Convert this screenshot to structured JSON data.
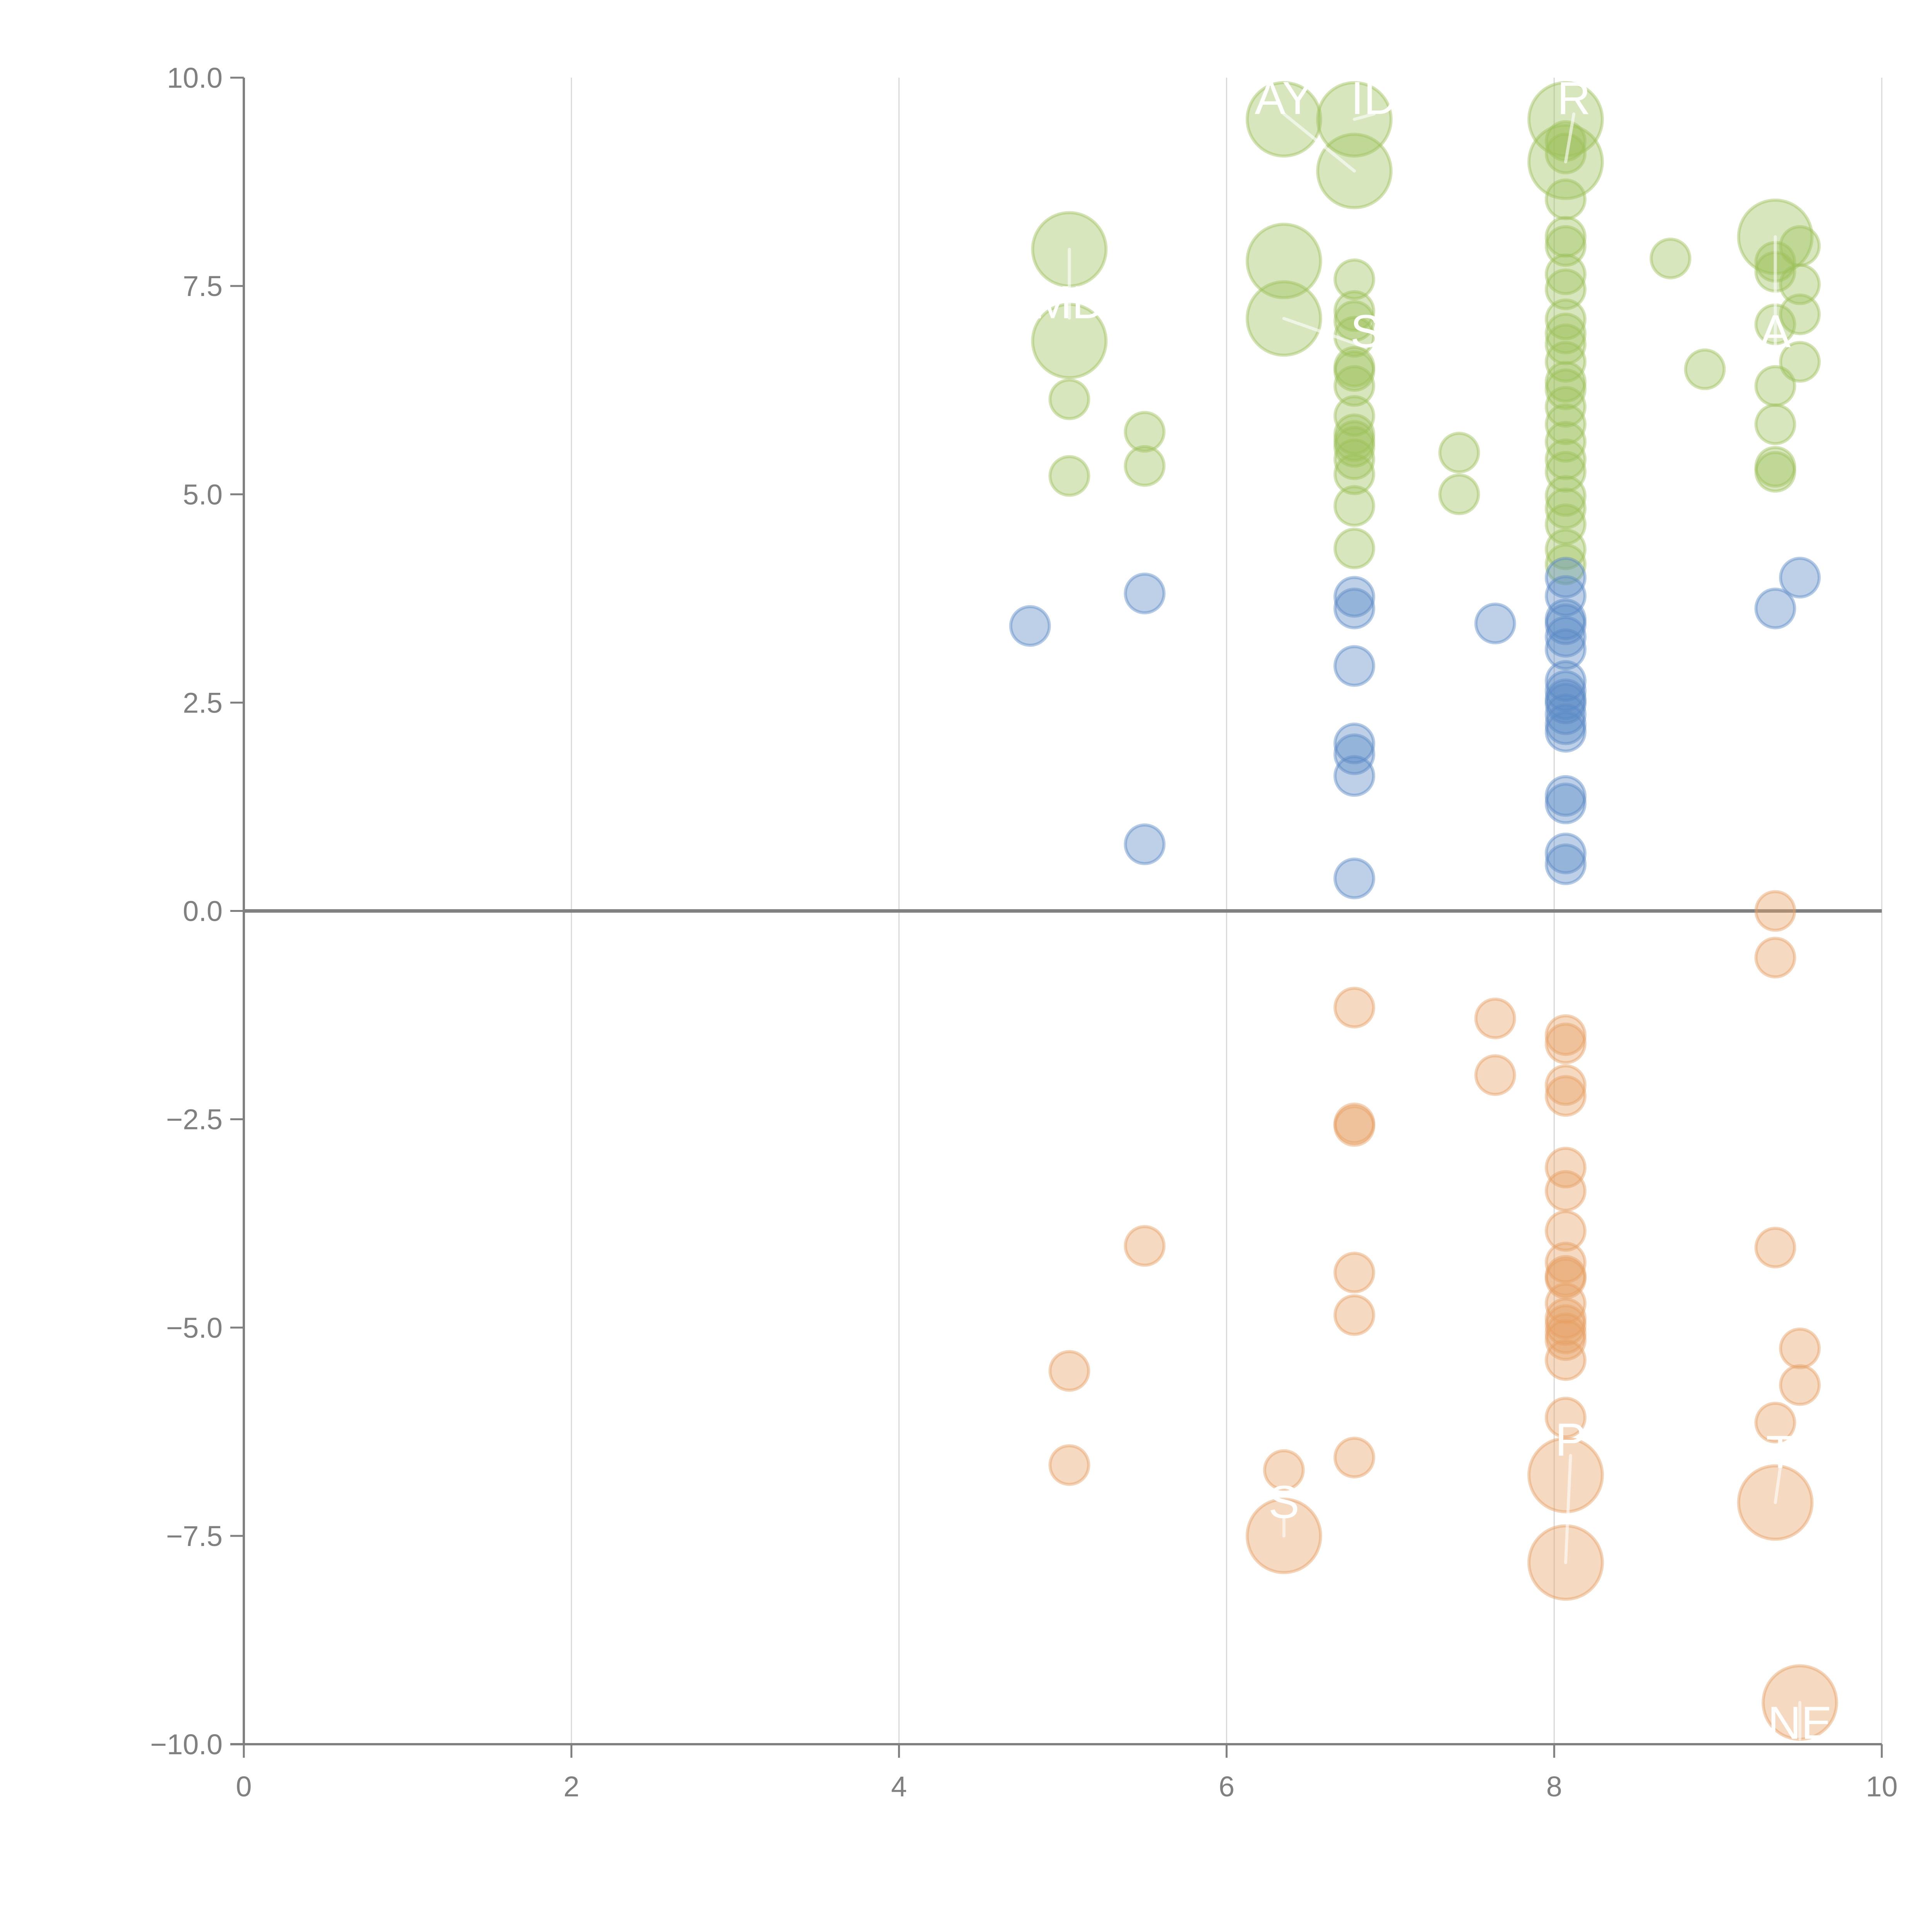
{
  "chart_data": {
    "type": "scatter",
    "subtype": "bubble",
    "title": "",
    "xlabel": "",
    "ylabel": "",
    "xlim": [
      0,
      10
    ],
    "ylim": [
      -10,
      10
    ],
    "x_ticks": [
      "0",
      "2",
      "4",
      "6",
      "8",
      "10"
    ],
    "y_ticks": [
      "10.0",
      "7.5",
      "5.0",
      "2.5",
      "0.0",
      "−2.5",
      "−5.0",
      "−7.5",
      "−10.0"
    ],
    "x_tick_values": [
      0,
      2,
      4,
      6,
      8,
      10
    ],
    "y_tick_values": [
      10,
      7.5,
      5,
      2.5,
      0,
      -2.5,
      -5,
      -7.5,
      -10
    ],
    "grid": "vertical",
    "zero_line": true,
    "legend": "none",
    "series": [
      {
        "name": "green",
        "color": "#9dc05b",
        "points": [
          {
            "x": 5.04,
            "y": 7.94,
            "size": "large"
          },
          {
            "x": 5.04,
            "y": 6.84,
            "size": "large"
          },
          {
            "x": 5.04,
            "y": 6.14,
            "size": "small"
          },
          {
            "x": 5.04,
            "y": 5.22,
            "size": "small"
          },
          {
            "x": 5.5,
            "y": 5.75,
            "size": "small"
          },
          {
            "x": 5.5,
            "y": 5.34,
            "size": "small"
          },
          {
            "x": 6.35,
            "y": 9.5,
            "size": "large"
          },
          {
            "x": 6.35,
            "y": 7.8,
            "size": "large"
          },
          {
            "x": 6.35,
            "y": 7.11,
            "size": "large"
          },
          {
            "x": 6.78,
            "y": 9.5,
            "size": "large"
          },
          {
            "x": 6.78,
            "y": 8.88,
            "size": "large"
          },
          {
            "x": 6.78,
            "y": 7.58,
            "size": "small"
          },
          {
            "x": 6.78,
            "y": 7.2,
            "size": "small"
          },
          {
            "x": 6.78,
            "y": 7.08,
            "size": "small"
          },
          {
            "x": 6.78,
            "y": 6.89,
            "size": "small"
          },
          {
            "x": 6.78,
            "y": 6.53,
            "size": "small"
          },
          {
            "x": 6.78,
            "y": 6.48,
            "size": "small"
          },
          {
            "x": 6.78,
            "y": 6.3,
            "size": "small"
          },
          {
            "x": 6.78,
            "y": 5.94,
            "size": "small"
          },
          {
            "x": 6.78,
            "y": 5.72,
            "size": "small"
          },
          {
            "x": 6.78,
            "y": 5.64,
            "size": "small"
          },
          {
            "x": 6.78,
            "y": 5.57,
            "size": "small"
          },
          {
            "x": 6.78,
            "y": 5.42,
            "size": "small"
          },
          {
            "x": 6.78,
            "y": 5.24,
            "size": "small"
          },
          {
            "x": 6.78,
            "y": 4.86,
            "size": "small"
          },
          {
            "x": 6.78,
            "y": 4.35,
            "size": "small"
          },
          {
            "x": 7.42,
            "y": 5.5,
            "size": "small"
          },
          {
            "x": 7.42,
            "y": 5.0,
            "size": "small"
          },
          {
            "x": 8.07,
            "y": 9.5,
            "size": "large"
          },
          {
            "x": 8.07,
            "y": 8.99,
            "size": "large"
          },
          {
            "x": 8.07,
            "y": 9.24,
            "size": "small"
          },
          {
            "x": 8.07,
            "y": 9.09,
            "size": "small"
          },
          {
            "x": 8.07,
            "y": 8.54,
            "size": "small"
          },
          {
            "x": 8.07,
            "y": 8.09,
            "size": "small"
          },
          {
            "x": 8.07,
            "y": 7.98,
            "size": "small"
          },
          {
            "x": 8.07,
            "y": 7.64,
            "size": "small"
          },
          {
            "x": 8.07,
            "y": 7.46,
            "size": "small"
          },
          {
            "x": 8.07,
            "y": 7.1,
            "size": "small"
          },
          {
            "x": 8.07,
            "y": 6.93,
            "size": "small"
          },
          {
            "x": 8.07,
            "y": 6.8,
            "size": "small"
          },
          {
            "x": 8.07,
            "y": 6.59,
            "size": "small"
          },
          {
            "x": 8.07,
            "y": 6.35,
            "size": "small"
          },
          {
            "x": 8.07,
            "y": 6.26,
            "size": "small"
          },
          {
            "x": 8.07,
            "y": 6.05,
            "size": "small"
          },
          {
            "x": 8.07,
            "y": 5.84,
            "size": "small"
          },
          {
            "x": 8.07,
            "y": 5.63,
            "size": "small"
          },
          {
            "x": 8.07,
            "y": 5.42,
            "size": "small"
          },
          {
            "x": 8.07,
            "y": 5.27,
            "size": "small"
          },
          {
            "x": 8.07,
            "y": 4.98,
            "size": "small"
          },
          {
            "x": 8.07,
            "y": 4.83,
            "size": "small"
          },
          {
            "x": 8.07,
            "y": 4.64,
            "size": "small"
          },
          {
            "x": 8.07,
            "y": 4.34,
            "size": "small"
          },
          {
            "x": 8.07,
            "y": 4.16,
            "size": "small"
          },
          {
            "x": 8.71,
            "y": 7.83,
            "size": "small"
          },
          {
            "x": 8.92,
            "y": 6.5,
            "size": "small"
          },
          {
            "x": 9.35,
            "y": 8.09,
            "size": "large"
          },
          {
            "x": 9.35,
            "y": 7.79,
            "size": "small"
          },
          {
            "x": 9.35,
            "y": 7.67,
            "size": "small"
          },
          {
            "x": 9.35,
            "y": 7.04,
            "size": "small"
          },
          {
            "x": 9.35,
            "y": 6.3,
            "size": "small"
          },
          {
            "x": 9.35,
            "y": 5.84,
            "size": "small"
          },
          {
            "x": 9.35,
            "y": 5.33,
            "size": "small"
          },
          {
            "x": 9.35,
            "y": 5.27,
            "size": "small"
          },
          {
            "x": 9.5,
            "y": 7.98,
            "size": "small"
          },
          {
            "x": 9.5,
            "y": 7.52,
            "size": "small"
          },
          {
            "x": 9.5,
            "y": 7.16,
            "size": "small"
          },
          {
            "x": 9.5,
            "y": 6.59,
            "size": "small"
          }
        ]
      },
      {
        "name": "blue",
        "color": "#5b8ac6",
        "points": [
          {
            "x": 4.8,
            "y": 3.42,
            "size": "small"
          },
          {
            "x": 5.5,
            "y": 3.81,
            "size": "small"
          },
          {
            "x": 5.5,
            "y": 0.8,
            "size": "small"
          },
          {
            "x": 6.78,
            "y": 3.77,
            "size": "small"
          },
          {
            "x": 6.78,
            "y": 3.63,
            "size": "small"
          },
          {
            "x": 6.78,
            "y": 2.94,
            "size": "small"
          },
          {
            "x": 6.78,
            "y": 2.01,
            "size": "small"
          },
          {
            "x": 6.78,
            "y": 1.88,
            "size": "small"
          },
          {
            "x": 6.78,
            "y": 1.62,
            "size": "small"
          },
          {
            "x": 6.78,
            "y": 0.39,
            "size": "small"
          },
          {
            "x": 7.64,
            "y": 3.45,
            "size": "small"
          },
          {
            "x": 8.07,
            "y": 4.0,
            "size": "small"
          },
          {
            "x": 8.07,
            "y": 3.78,
            "size": "small"
          },
          {
            "x": 8.07,
            "y": 3.5,
            "size": "small"
          },
          {
            "x": 8.07,
            "y": 3.44,
            "size": "small"
          },
          {
            "x": 8.07,
            "y": 3.29,
            "size": "small"
          },
          {
            "x": 8.07,
            "y": 3.14,
            "size": "small"
          },
          {
            "x": 8.07,
            "y": 2.76,
            "size": "small"
          },
          {
            "x": 8.07,
            "y": 2.64,
            "size": "small"
          },
          {
            "x": 8.07,
            "y": 2.54,
            "size": "small"
          },
          {
            "x": 8.07,
            "y": 2.49,
            "size": "small"
          },
          {
            "x": 8.07,
            "y": 2.36,
            "size": "small"
          },
          {
            "x": 8.07,
            "y": 2.24,
            "size": "small"
          },
          {
            "x": 8.07,
            "y": 2.15,
            "size": "small"
          },
          {
            "x": 8.07,
            "y": 1.38,
            "size": "small"
          },
          {
            "x": 8.07,
            "y": 1.29,
            "size": "small"
          },
          {
            "x": 8.07,
            "y": 0.69,
            "size": "small"
          },
          {
            "x": 8.07,
            "y": 0.56,
            "size": "small"
          },
          {
            "x": 9.35,
            "y": 3.63,
            "size": "small"
          },
          {
            "x": 9.5,
            "y": 4.0,
            "size": "small"
          }
        ]
      },
      {
        "name": "orange",
        "color": "#e6a064",
        "points": [
          {
            "x": 9.35,
            "y": 0.0,
            "size": "small"
          },
          {
            "x": 9.35,
            "y": -0.56,
            "size": "small"
          },
          {
            "x": 6.78,
            "y": -1.16,
            "size": "small"
          },
          {
            "x": 7.64,
            "y": -1.29,
            "size": "small"
          },
          {
            "x": 7.64,
            "y": -1.97,
            "size": "small"
          },
          {
            "x": 6.78,
            "y": -2.55,
            "size": "small"
          },
          {
            "x": 6.78,
            "y": -2.58,
            "size": "small"
          },
          {
            "x": 8.07,
            "y": -1.49,
            "size": "small"
          },
          {
            "x": 8.07,
            "y": -1.59,
            "size": "small"
          },
          {
            "x": 8.07,
            "y": -2.09,
            "size": "small"
          },
          {
            "x": 8.07,
            "y": -2.22,
            "size": "small"
          },
          {
            "x": 8.07,
            "y": -3.08,
            "size": "small"
          },
          {
            "x": 8.07,
            "y": -3.36,
            "size": "small"
          },
          {
            "x": 8.07,
            "y": -3.84,
            "size": "small"
          },
          {
            "x": 8.07,
            "y": -4.22,
            "size": "small"
          },
          {
            "x": 8.07,
            "y": -4.38,
            "size": "small"
          },
          {
            "x": 8.07,
            "y": -4.41,
            "size": "small"
          },
          {
            "x": 8.07,
            "y": -4.71,
            "size": "small"
          },
          {
            "x": 8.07,
            "y": -4.89,
            "size": "small"
          },
          {
            "x": 8.07,
            "y": -4.97,
            "size": "small"
          },
          {
            "x": 8.07,
            "y": -5.07,
            "size": "small"
          },
          {
            "x": 8.07,
            "y": -5.15,
            "size": "small"
          },
          {
            "x": 8.07,
            "y": -5.39,
            "size": "small"
          },
          {
            "x": 8.07,
            "y": -6.08,
            "size": "small"
          },
          {
            "x": 5.5,
            "y": -4.02,
            "size": "small"
          },
          {
            "x": 6.78,
            "y": -4.34,
            "size": "small"
          },
          {
            "x": 6.78,
            "y": -4.85,
            "size": "small"
          },
          {
            "x": 6.78,
            "y": -6.56,
            "size": "small"
          },
          {
            "x": 9.35,
            "y": -4.04,
            "size": "small"
          },
          {
            "x": 9.5,
            "y": -5.25,
            "size": "small"
          },
          {
            "x": 9.5,
            "y": -5.69,
            "size": "small"
          },
          {
            "x": 9.35,
            "y": -6.14,
            "size": "small"
          },
          {
            "x": 5.04,
            "y": -5.52,
            "size": "small"
          },
          {
            "x": 5.04,
            "y": -6.65,
            "size": "small"
          },
          {
            "x": 6.35,
            "y": -6.71,
            "size": "small"
          },
          {
            "x": 6.35,
            "y": -7.5,
            "size": "large"
          },
          {
            "x": 8.07,
            "y": -6.77,
            "size": "large"
          },
          {
            "x": 8.07,
            "y": -7.82,
            "size": "large"
          },
          {
            "x": 9.35,
            "y": -7.1,
            "size": "large"
          },
          {
            "x": 9.5,
            "y": -9.5,
            "size": "large"
          }
        ]
      }
    ],
    "annotations": [
      {
        "text": "MD",
        "x": 5.04,
        "y": 7.3,
        "anchor_x": 5.04,
        "anchor_y": 7.94
      },
      {
        "text": "AY",
        "x": 6.35,
        "y": 9.75,
        "anchor_x": 6.78,
        "anchor_y": 8.88
      },
      {
        "text": "ID",
        "x": 6.9,
        "y": 9.75,
        "anchor_x": 6.78,
        "anchor_y": 9.5
      },
      {
        "text": "R",
        "x": 8.12,
        "y": 9.75,
        "anchor_x": 8.07,
        "anchor_y": 8.99
      },
      {
        "text": "S",
        "x": 6.85,
        "y": 6.95,
        "anchor_x": 6.35,
        "anchor_y": 7.11
      },
      {
        "text": "A",
        "x": 9.35,
        "y": 6.95,
        "anchor_x": 9.35,
        "anchor_y": 8.09
      },
      {
        "text": "P",
        "x": 8.1,
        "y": -6.35,
        "anchor_x": 8.07,
        "anchor_y": -7.82
      },
      {
        "text": "S",
        "x": 6.35,
        "y": -7.1,
        "anchor_x": 6.35,
        "anchor_y": -7.5
      },
      {
        "text": "T",
        "x": 9.38,
        "y": -6.5,
        "anchor_x": 9.35,
        "anchor_y": -7.1
      },
      {
        "text": "NE",
        "x": 9.5,
        "y": -9.75,
        "anchor_x": 9.5,
        "anchor_y": -9.5
      }
    ]
  }
}
